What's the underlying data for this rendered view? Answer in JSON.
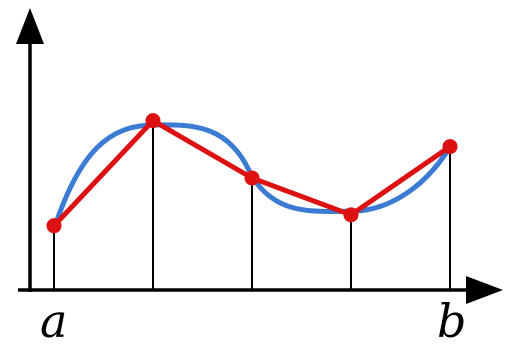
{
  "diagram": {
    "description_labels": {
      "left_endpoint": "a",
      "right_endpoint": "b"
    },
    "colors": {
      "axis": "#000000",
      "curve": "#3366cc",
      "polyline": "#dd0000",
      "points": "#dd0000",
      "verticals": "#000000"
    }
  },
  "chart_data": {
    "type": "line",
    "x": [
      0,
      1,
      2,
      3,
      4
    ],
    "series": [
      {
        "values": [
          0.47,
          1.24,
          0.82,
          0.55,
          1.05
        ]
      }
    ],
    "xlabel": "",
    "ylabel": "",
    "xtick_labels": [
      "a",
      "b"
    ],
    "grid": false
  }
}
